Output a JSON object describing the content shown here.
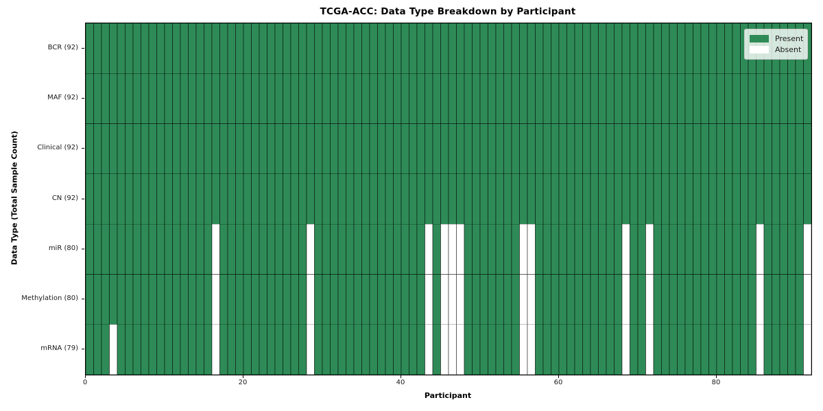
{
  "chart_data": {
    "type": "heatmap",
    "title": "TCGA-ACC: Data Type Breakdown by Participant",
    "xlabel": "Participant",
    "ylabel": "Data Type (Total Sample Count)",
    "n_participants": 92,
    "x_ticks": [
      0,
      20,
      40,
      60,
      80
    ],
    "x_range": [
      0,
      92
    ],
    "grid": "cell-edges",
    "legend_position": "upper-right",
    "colors": {
      "present": "#2e8b57",
      "absent": "#ffffff",
      "cell_edge": "rgba(0,0,0,0.5)",
      "legend_border": "#cccccc"
    },
    "legend": [
      {
        "label": "Present",
        "color": "#2e8b57"
      },
      {
        "label": "Absent",
        "color": "#ffffff"
      }
    ],
    "rows": [
      {
        "label": "BCR (92)",
        "total_samples": 92,
        "absent_participants": []
      },
      {
        "label": "MAF (92)",
        "total_samples": 92,
        "absent_participants": []
      },
      {
        "label": "Clinical (92)",
        "total_samples": 92,
        "absent_participants": []
      },
      {
        "label": "CN (92)",
        "total_samples": 92,
        "absent_participants": []
      },
      {
        "label": "miR (80)",
        "total_samples": 80,
        "absent_participants": [
          16,
          28,
          43,
          45,
          46,
          47,
          55,
          56,
          68,
          71,
          85,
          91
        ]
      },
      {
        "label": "Methylation (80)",
        "total_samples": 80,
        "absent_participants": [
          16,
          28,
          43,
          45,
          46,
          47,
          55,
          56,
          68,
          71,
          85,
          91
        ]
      },
      {
        "label": "mRNA (79)",
        "total_samples": 79,
        "absent_participants": [
          3,
          16,
          28,
          43,
          45,
          46,
          47,
          55,
          56,
          68,
          71,
          85,
          91
        ]
      }
    ]
  }
}
